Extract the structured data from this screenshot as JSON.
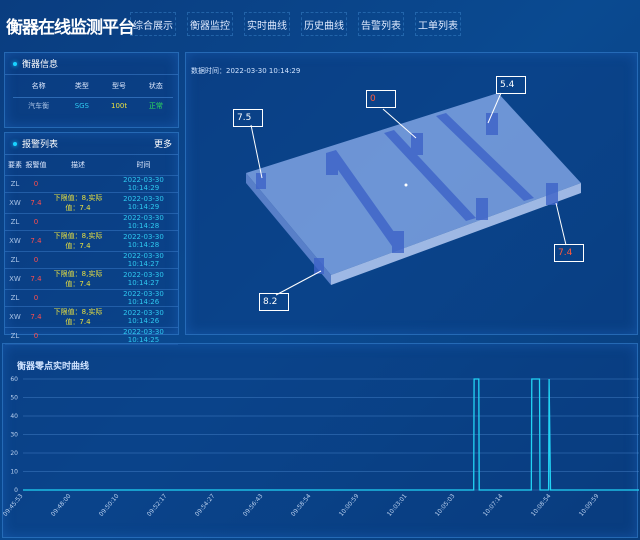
{
  "header": {
    "title": "衡器在线监测平台",
    "nav": [
      "综合展示",
      "衡器监控",
      "实时曲线",
      "历史曲线",
      "告警列表",
      "工单列表"
    ]
  },
  "scale_info": {
    "title": "衡器信息",
    "columns": [
      "名称",
      "类型",
      "型号",
      "状态"
    ],
    "row": [
      "汽车衡",
      "SGS",
      "100t",
      "正常"
    ]
  },
  "alarms": {
    "title": "报警列表",
    "more": "更多",
    "columns": [
      "要素",
      "报警值",
      "描述",
      "时间"
    ],
    "rows": [
      [
        "ZL",
        "0",
        "",
        "2022-03-30 10:14:29"
      ],
      [
        "XW",
        "7.4",
        "下限值：8,实际值：7.4",
        "2022-03-30 10:14:29"
      ],
      [
        "ZL",
        "0",
        "",
        "2022-03-30 10:14:28"
      ],
      [
        "XW",
        "7.4",
        "下限值：8,实际值：7.4",
        "2022-03-30 10:14:28"
      ],
      [
        "ZL",
        "0",
        "",
        "2022-03-30 10:14:27"
      ],
      [
        "XW",
        "7.4",
        "下限值：8,实际值：7.4",
        "2022-03-30 10:14:27"
      ],
      [
        "ZL",
        "0",
        "",
        "2022-03-30 10:14:26"
      ],
      [
        "XW",
        "7.4",
        "下限值：8,实际值：7.4",
        "2022-03-30 10:14:26"
      ],
      [
        "ZL",
        "0",
        "",
        "2022-03-30 10:14:25"
      ]
    ]
  },
  "monitor": {
    "data_time": "数据时间：2022-03-30 10:14:29",
    "sensors": [
      {
        "value": "7.5",
        "alert": false
      },
      {
        "value": "0",
        "alert": true
      },
      {
        "value": "5.4",
        "alert": false
      },
      {
        "value": "7.4",
        "alert": true
      },
      {
        "value": "8.2",
        "alert": false
      }
    ]
  },
  "colors": {
    "accent": "#19d3ff",
    "alert": "#ff5a3c",
    "line": "#22d4f5"
  },
  "chart_data": {
    "type": "line",
    "title": "衡器零点实时曲线",
    "xlabel": "",
    "ylabel": "",
    "ylim": [
      0,
      60
    ],
    "grid": true,
    "yticks": [
      0,
      10,
      20,
      30,
      40,
      50,
      60
    ],
    "xticks": [
      "09:45:53",
      "09:48:00",
      "09:50:10",
      "09:52:17",
      "09:54:27",
      "09:56:43",
      "09:58:54",
      "10:00:59",
      "10:03:01",
      "10:05:03",
      "10:07:14",
      "10:08:54",
      "10:09:59"
    ],
    "series": [
      {
        "points": [
          [
            "09:45:53",
            0
          ],
          [
            "10:05:54",
            0
          ],
          [
            "10:05:55",
            60
          ],
          [
            "10:06:08",
            60
          ],
          [
            "10:06:09",
            0
          ],
          [
            "10:08:13",
            0
          ],
          [
            "10:08:14",
            60
          ],
          [
            "10:08:30",
            60
          ],
          [
            "10:08:31",
            0
          ],
          [
            "10:08:49",
            0
          ],
          [
            "10:08:50",
            60
          ],
          [
            "10:08:53",
            0
          ],
          [
            "10:11:00",
            0
          ]
        ]
      }
    ]
  }
}
